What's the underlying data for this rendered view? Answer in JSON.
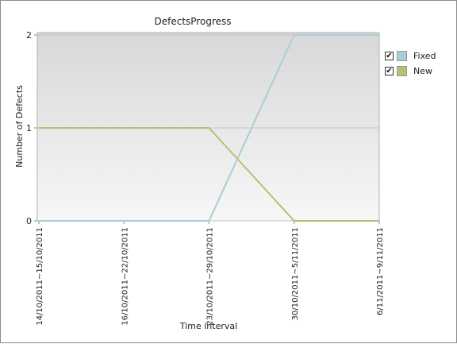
{
  "chart_data": {
    "type": "line",
    "title": "DefectsProgress",
    "xlabel": "Time interval",
    "ylabel": "Number of Defects",
    "categories": [
      "14/10/2011~15/10/2011",
      "16/10/2011~22/10/2011",
      "23/10/2011~29/10/2011",
      "30/10/2011~5/11/2011",
      "6/11/2011~9/11/2011"
    ],
    "yticks": [
      "0",
      "1",
      "2"
    ],
    "ylim": [
      0,
      2
    ],
    "grid": true,
    "legend_position": "right",
    "series": [
      {
        "name": "Fixed",
        "color": "#a9cdd6",
        "checked": true,
        "values": [
          0,
          0,
          0,
          2,
          2
        ]
      },
      {
        "name": "New",
        "color": "#b3c175",
        "checked": true,
        "values": [
          1,
          1,
          1,
          0,
          0
        ]
      }
    ]
  },
  "legend": {
    "check_glyph": "✔"
  }
}
